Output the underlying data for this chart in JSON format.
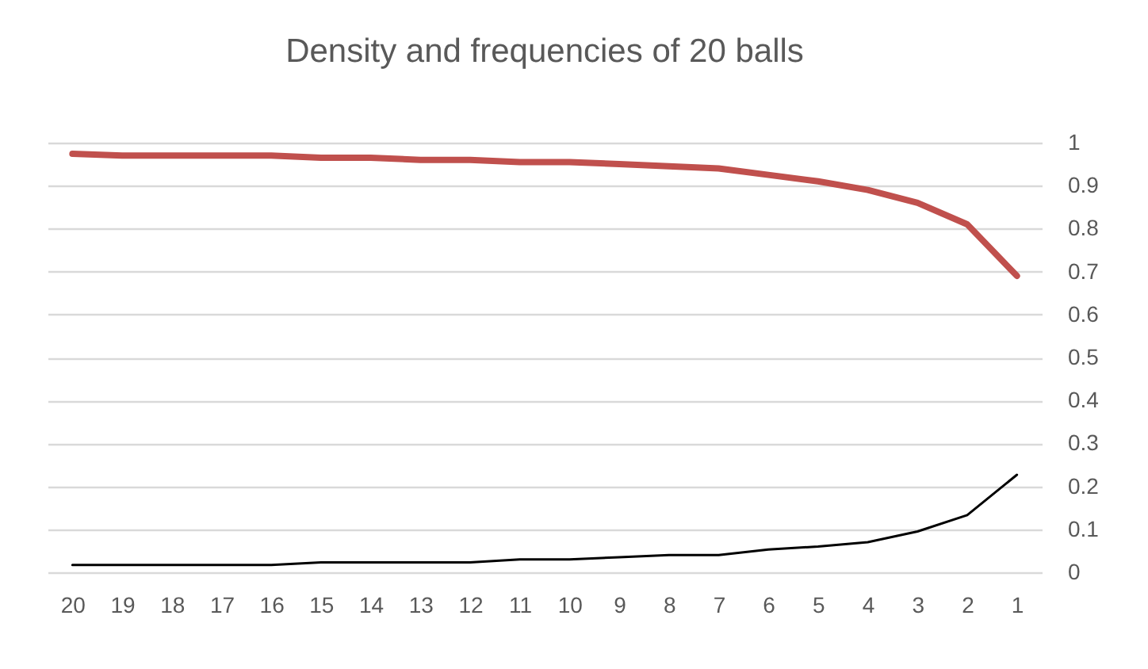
{
  "chart_data": {
    "type": "line",
    "title": "Density and frequencies of 20 balls",
    "categories": [
      "20",
      "19",
      "18",
      "17",
      "16",
      "15",
      "14",
      "13",
      "12",
      "11",
      "10",
      "9",
      "8",
      "7",
      "6",
      "5",
      "4",
      "3",
      "2",
      "1"
    ],
    "series": [
      {
        "color": "#c0504d",
        "values": [
          0.974,
          0.97,
          0.97,
          0.97,
          0.97,
          0.965,
          0.965,
          0.96,
          0.96,
          0.955,
          0.955,
          0.95,
          0.945,
          0.94,
          0.925,
          0.91,
          0.89,
          0.86,
          0.81,
          0.69
        ]
      },
      {
        "color": "#000000",
        "values": [
          0.017,
          0.017,
          0.017,
          0.017,
          0.017,
          0.023,
          0.023,
          0.023,
          0.023,
          0.03,
          0.03,
          0.035,
          0.04,
          0.04,
          0.053,
          0.06,
          0.07,
          0.095,
          0.133,
          0.227
        ]
      }
    ],
    "ylim": [
      0,
      1
    ],
    "yticks": [
      0,
      0.1,
      0.2,
      0.3,
      0.4,
      0.5,
      0.6,
      0.7,
      0.8,
      0.9,
      1
    ],
    "grid": "y",
    "legend": false,
    "marker": "none",
    "line_style": "solid"
  }
}
